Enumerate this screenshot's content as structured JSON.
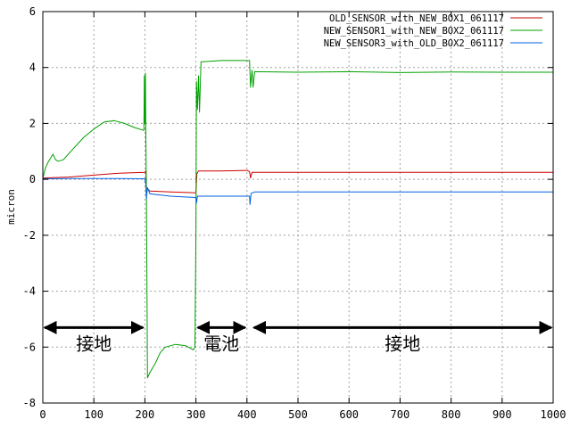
{
  "chart_data": {
    "type": "line",
    "ylabel": "micron",
    "xlim": [
      0,
      1000
    ],
    "ylim": [
      -8,
      6
    ],
    "x_ticks": [
      0,
      100,
      200,
      300,
      400,
      500,
      600,
      700,
      800,
      900,
      1000
    ],
    "y_ticks": [
      -8,
      -6,
      -4,
      -2,
      0,
      2,
      4,
      6
    ],
    "grid": true,
    "legend_position": "top-right",
    "series": [
      {
        "name": "OLD_SENSOR_with_NEW_BOX1_061117",
        "color": "#cc0000",
        "points": [
          [
            0,
            0.05
          ],
          [
            50,
            0.08
          ],
          [
            100,
            0.15
          ],
          [
            150,
            0.22
          ],
          [
            200,
            0.25
          ],
          [
            202,
            0.3
          ],
          [
            203,
            -0.3
          ],
          [
            210,
            -0.42
          ],
          [
            250,
            -0.45
          ],
          [
            300,
            -0.48
          ],
          [
            302,
            0.2
          ],
          [
            305,
            0.3
          ],
          [
            350,
            0.3
          ],
          [
            400,
            0.32
          ],
          [
            405,
            0.28
          ],
          [
            407,
            0.05
          ],
          [
            410,
            0.25
          ],
          [
            500,
            0.25
          ],
          [
            600,
            0.25
          ],
          [
            700,
            0.25
          ],
          [
            800,
            0.25
          ],
          [
            900,
            0.25
          ],
          [
            1000,
            0.25
          ]
        ]
      },
      {
        "name": "NEW_SENSOR1_with_NEW_BOX2_061117",
        "color": "#00a000",
        "points": [
          [
            0,
            0.05
          ],
          [
            5,
            0.4
          ],
          [
            10,
            0.6
          ],
          [
            20,
            0.9
          ],
          [
            25,
            0.7
          ],
          [
            30,
            0.65
          ],
          [
            40,
            0.7
          ],
          [
            60,
            1.1
          ],
          [
            80,
            1.5
          ],
          [
            100,
            1.8
          ],
          [
            120,
            2.05
          ],
          [
            140,
            2.1
          ],
          [
            160,
            2.0
          ],
          [
            180,
            1.85
          ],
          [
            198,
            1.75
          ],
          [
            199,
            3.7
          ],
          [
            200,
            2.0
          ],
          [
            201,
            3.8
          ],
          [
            202,
            1.5
          ],
          [
            203,
            -0.5
          ],
          [
            205,
            -7.1
          ],
          [
            210,
            -6.9
          ],
          [
            220,
            -6.6
          ],
          [
            230,
            -6.2
          ],
          [
            240,
            -6.0
          ],
          [
            260,
            -5.9
          ],
          [
            280,
            -5.95
          ],
          [
            295,
            -6.1
          ],
          [
            298,
            -6.0
          ],
          [
            300,
            -2.0
          ],
          [
            301,
            3.5
          ],
          [
            303,
            2.5
          ],
          [
            305,
            3.7
          ],
          [
            307,
            2.4
          ],
          [
            310,
            4.2
          ],
          [
            350,
            4.25
          ],
          [
            400,
            4.25
          ],
          [
            405,
            4.25
          ],
          [
            407,
            3.3
          ],
          [
            410,
            3.9
          ],
          [
            412,
            3.3
          ],
          [
            415,
            3.85
          ],
          [
            500,
            3.83
          ],
          [
            600,
            3.85
          ],
          [
            700,
            3.82
          ],
          [
            800,
            3.84
          ],
          [
            900,
            3.83
          ],
          [
            1000,
            3.83
          ]
        ]
      },
      {
        "name": "NEW_SENSOR3_with_OLD_BOX2_061117",
        "color": "#0060e0",
        "points": [
          [
            0,
            0.02
          ],
          [
            50,
            0.03
          ],
          [
            100,
            0.03
          ],
          [
            150,
            0.03
          ],
          [
            200,
            0.02
          ],
          [
            202,
            -0.2
          ],
          [
            203,
            -0.7
          ],
          [
            205,
            -0.3
          ],
          [
            210,
            -0.52
          ],
          [
            250,
            -0.6
          ],
          [
            300,
            -0.65
          ],
          [
            301,
            -0.85
          ],
          [
            303,
            -0.6
          ],
          [
            350,
            -0.6
          ],
          [
            400,
            -0.6
          ],
          [
            405,
            -0.6
          ],
          [
            406,
            -0.9
          ],
          [
            408,
            -0.5
          ],
          [
            415,
            -0.45
          ],
          [
            500,
            -0.45
          ],
          [
            600,
            -0.45
          ],
          [
            700,
            -0.45
          ],
          [
            800,
            -0.45
          ],
          [
            900,
            -0.45
          ],
          [
            1000,
            -0.45
          ]
        ]
      }
    ],
    "annotations": [
      {
        "text": "接地",
        "x_start": 0,
        "x_end": 200,
        "y": -5.3
      },
      {
        "text": "電池",
        "x_start": 300,
        "x_end": 400,
        "y": -5.3
      },
      {
        "text": "接地",
        "x_start": 410,
        "x_end": 1000,
        "y": -5.3
      }
    ]
  }
}
